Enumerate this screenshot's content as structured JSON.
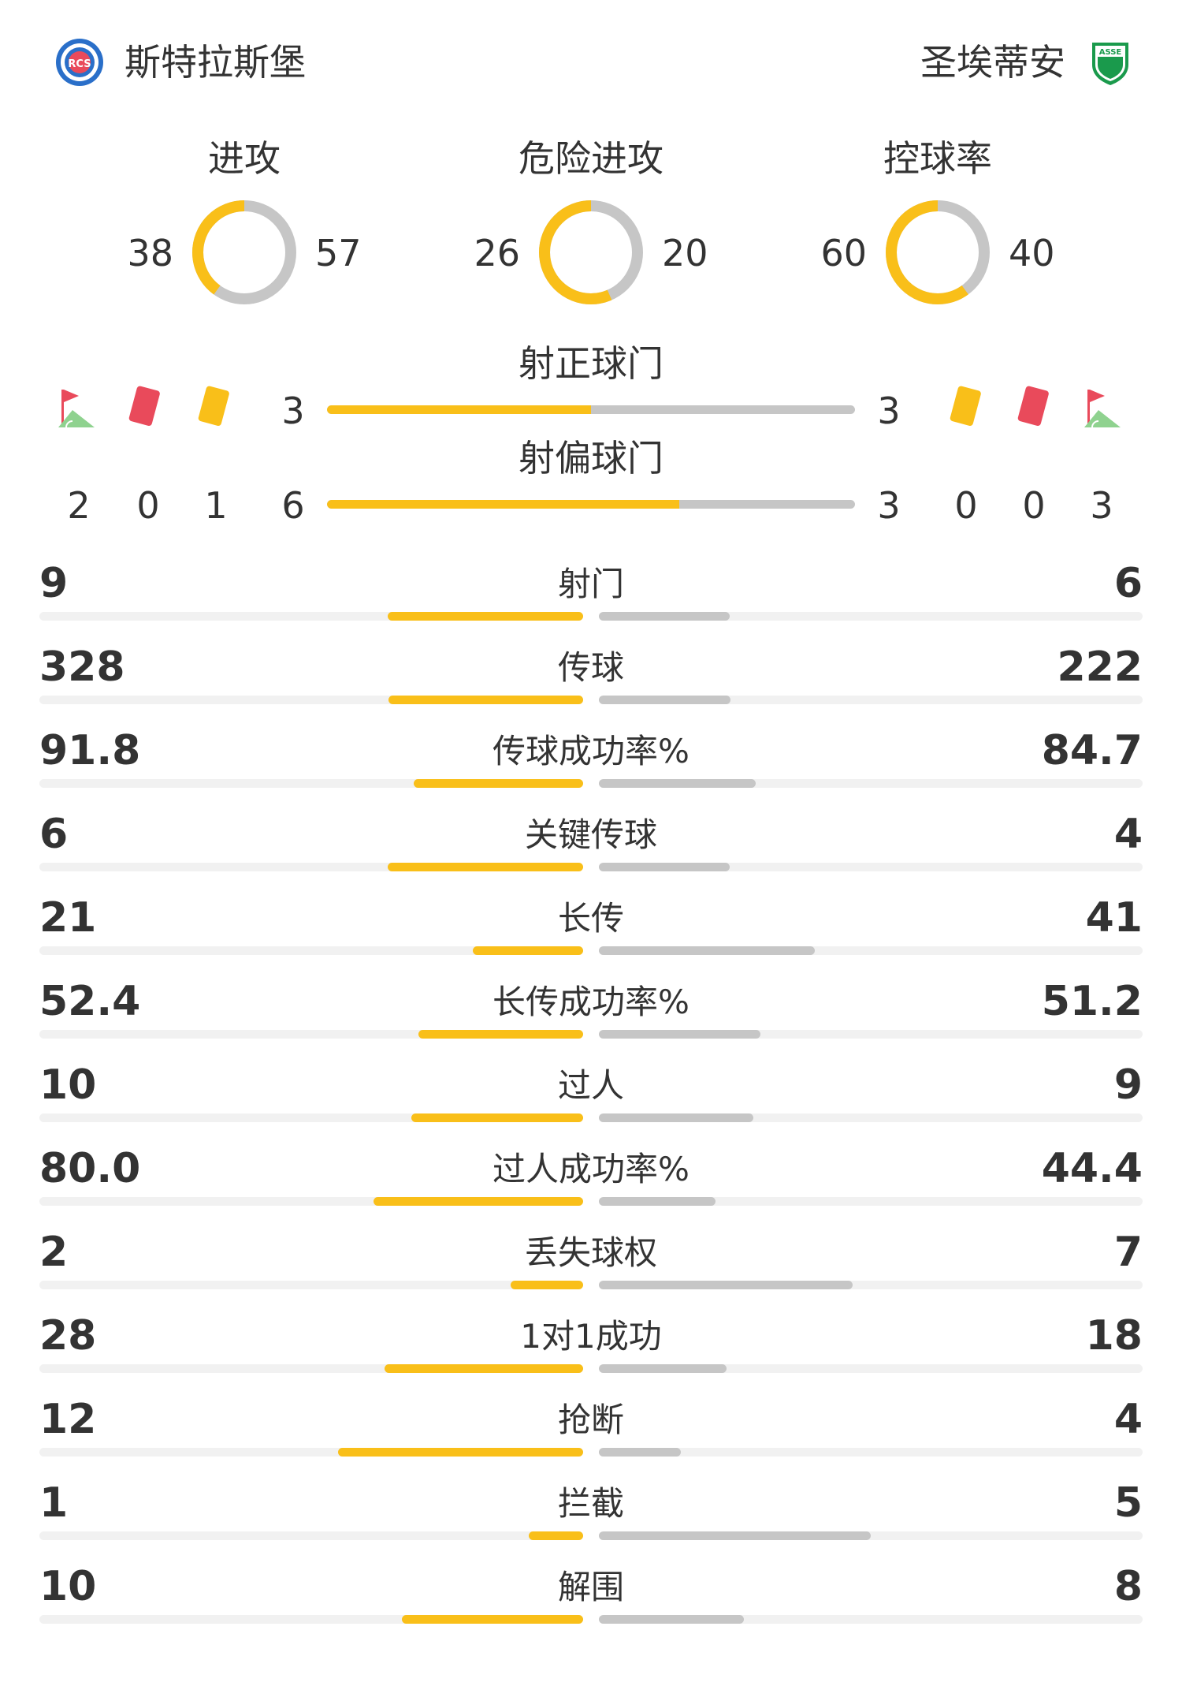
{
  "home": {
    "name": "斯特拉斯堡",
    "logo_letters": "RCS"
  },
  "away": {
    "name": "圣埃蒂安",
    "logo_letters": "ASSE"
  },
  "colors": {
    "home": "#f9bf19",
    "away": "#c6c6c6",
    "track": "#f1f1f1",
    "red_card": "#e94a5b",
    "corner_flag": "#e94a5b",
    "corner_grass": "#8fd28f"
  },
  "donuts": [
    {
      "title": "进攻",
      "home": "38",
      "away": "57"
    },
    {
      "title": "危险进攻",
      "home": "26",
      "away": "20"
    },
    {
      "title": "控球率",
      "home": "60",
      "away": "40"
    }
  ],
  "shots_on": {
    "title": "射正球门",
    "home": "3",
    "away": "3"
  },
  "shots_off": {
    "title": "射偏球门",
    "home": "6",
    "away": "3"
  },
  "discipline": {
    "icons": [
      "corner-flag-icon",
      "red-card-icon",
      "yellow-card-icon"
    ],
    "home": {
      "corners": "2",
      "red": "0",
      "yellow": "1"
    },
    "away": {
      "yellow": "0",
      "red": "0",
      "corners": "3"
    }
  },
  "stats": [
    {
      "label": "射门",
      "home": "9",
      "away": "6"
    },
    {
      "label": "传球",
      "home": "328",
      "away": "222"
    },
    {
      "label": "传球成功率%",
      "home": "91.8",
      "away": "84.7"
    },
    {
      "label": "关键传球",
      "home": "6",
      "away": "4"
    },
    {
      "label": "长传",
      "home": "21",
      "away": "41"
    },
    {
      "label": "长传成功率%",
      "home": "52.4",
      "away": "51.2"
    },
    {
      "label": "过人",
      "home": "10",
      "away": "9"
    },
    {
      "label": "过人成功率%",
      "home": "80.0",
      "away": "44.4"
    },
    {
      "label": "丢失球权",
      "home": "2",
      "away": "7"
    },
    {
      "label": "1对1成功",
      "home": "28",
      "away": "18"
    },
    {
      "label": "抢断",
      "home": "12",
      "away": "4"
    },
    {
      "label": "拦截",
      "home": "1",
      "away": "5"
    },
    {
      "label": "解围",
      "home": "10",
      "away": "8"
    }
  ]
}
